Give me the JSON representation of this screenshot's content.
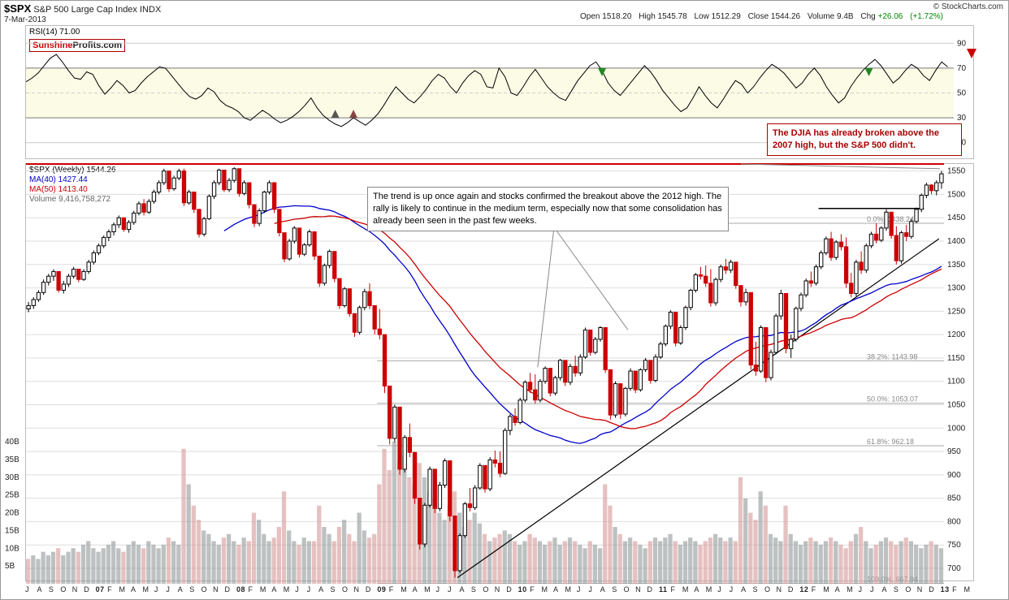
{
  "header": {
    "ticker": "$SPX",
    "name": "S&P 500 Large Cap Index",
    "type": "INDX",
    "date": "7-Mar-2013",
    "attribution": "© StockCharts.com",
    "ohlc": {
      "open": "1518.20",
      "high": "1545.78",
      "low": "1512.29",
      "close": "1544.26",
      "volume": "9.4B",
      "chg": "+26.06",
      "chg_pct": "(+1.72%)"
    }
  },
  "badge": {
    "part1": "Sunshine",
    "part2": "Profits.com"
  },
  "rsi": {
    "label": "RSI(14) 71.00",
    "yaxis": [
      10,
      30,
      50,
      70,
      90
    ],
    "overbought": 70,
    "oversold": 30,
    "mid": 50,
    "values": [
      59,
      62,
      66,
      72,
      78,
      81,
      75,
      68,
      62,
      61,
      67,
      65,
      56,
      49,
      54,
      60,
      56,
      50,
      52,
      58,
      63,
      67,
      71,
      70,
      64,
      58,
      52,
      47,
      45,
      48,
      54,
      51,
      44,
      40,
      38,
      35,
      30,
      28,
      32,
      36,
      33,
      29,
      26,
      28,
      31,
      35,
      40,
      46,
      38,
      32,
      28,
      25,
      23,
      26,
      30,
      27,
      24,
      28,
      33,
      40,
      48,
      55,
      50,
      45,
      42,
      47,
      53,
      60,
      65,
      62,
      55,
      50,
      58,
      64,
      68,
      65,
      55,
      54,
      70,
      63,
      50,
      48,
      55,
      63,
      69,
      62,
      55,
      50,
      46,
      44,
      52,
      60,
      66,
      72,
      75,
      68,
      58,
      52,
      48,
      54,
      60,
      66,
      72,
      67,
      60,
      52,
      46,
      40,
      35,
      38,
      46,
      55,
      48,
      42,
      38,
      45,
      53,
      60,
      57,
      50,
      55,
      62,
      68,
      73,
      70,
      66,
      60,
      54,
      58,
      65,
      70,
      64,
      55,
      48,
      42,
      46,
      55,
      62,
      68,
      73,
      77,
      72,
      65,
      58,
      62,
      68,
      73,
      70,
      64,
      60,
      68,
      75,
      71
    ],
    "colors": {
      "line": "#000000",
      "bands": "#888888",
      "bandfill": "#f7f7c8"
    },
    "arrow_down": true
  },
  "legend": {
    "l1": {
      "text": "$SPX (Weekly) 1544.26",
      "color": "#000000"
    },
    "l2": {
      "text": "MA(40) 1427.44",
      "color": "#0000cc"
    },
    "l3": {
      "text": "MA(50) 1413.40",
      "color": "#cc0000"
    },
    "l4": {
      "text": "Volume 9,416,758,272",
      "color": "#666666"
    }
  },
  "price": {
    "ylim": [
      667,
      1565
    ],
    "yticks": [
      700,
      750,
      800,
      850,
      900,
      950,
      1000,
      1050,
      1100,
      1150,
      1200,
      1250,
      1300,
      1350,
      1400,
      1450,
      1500,
      1550
    ],
    "resistance": 1565,
    "candles_ohlc": [
      [
        1255,
        1270,
        1248,
        1262
      ],
      [
        1262,
        1280,
        1255,
        1275
      ],
      [
        1275,
        1295,
        1270,
        1290
      ],
      [
        1290,
        1318,
        1285,
        1312
      ],
      [
        1312,
        1330,
        1305,
        1325
      ],
      [
        1325,
        1340,
        1315,
        1335
      ],
      [
        1335,
        1300,
        1290,
        1295
      ],
      [
        1295,
        1315,
        1288,
        1308
      ],
      [
        1308,
        1330,
        1302,
        1325
      ],
      [
        1325,
        1345,
        1320,
        1340
      ],
      [
        1340,
        1322,
        1312,
        1318
      ],
      [
        1318,
        1340,
        1315,
        1335
      ],
      [
        1335,
        1360,
        1330,
        1355
      ],
      [
        1355,
        1380,
        1350,
        1375
      ],
      [
        1375,
        1395,
        1370,
        1390
      ],
      [
        1390,
        1412,
        1385,
        1408
      ],
      [
        1408,
        1425,
        1400,
        1420
      ],
      [
        1420,
        1440,
        1412,
        1435
      ],
      [
        1435,
        1455,
        1428,
        1450
      ],
      [
        1450,
        1430,
        1420,
        1425
      ],
      [
        1425,
        1445,
        1418,
        1440
      ],
      [
        1440,
        1465,
        1435,
        1460
      ],
      [
        1460,
        1485,
        1455,
        1480
      ],
      [
        1480,
        1490,
        1455,
        1462
      ],
      [
        1462,
        1490,
        1458,
        1485
      ],
      [
        1485,
        1510,
        1480,
        1505
      ],
      [
        1505,
        1530,
        1500,
        1525
      ],
      [
        1525,
        1555,
        1520,
        1550
      ],
      [
        1550,
        1520,
        1505,
        1512
      ],
      [
        1512,
        1540,
        1508,
        1535
      ],
      [
        1535,
        1555,
        1530,
        1550
      ],
      [
        1550,
        1555,
        1475,
        1482
      ],
      [
        1482,
        1510,
        1478,
        1505
      ],
      [
        1505,
        1480,
        1460,
        1468
      ],
      [
        1468,
        1428,
        1408,
        1415
      ],
      [
        1415,
        1452,
        1410,
        1448
      ],
      [
        1448,
        1500,
        1445,
        1496
      ],
      [
        1496,
        1530,
        1490,
        1525
      ],
      [
        1525,
        1555,
        1520,
        1552
      ],
      [
        1552,
        1530,
        1505,
        1510
      ],
      [
        1510,
        1535,
        1505,
        1530
      ],
      [
        1530,
        1558,
        1525,
        1555
      ],
      [
        1555,
        1518,
        1495,
        1502
      ],
      [
        1502,
        1530,
        1498,
        1525
      ],
      [
        1525,
        1496,
        1470,
        1478
      ],
      [
        1478,
        1452,
        1430,
        1438
      ],
      [
        1438,
        1470,
        1432,
        1465
      ],
      [
        1465,
        1508,
        1460,
        1505
      ],
      [
        1505,
        1530,
        1500,
        1525
      ],
      [
        1525,
        1495,
        1460,
        1468
      ],
      [
        1468,
        1440,
        1410,
        1418
      ],
      [
        1418,
        1380,
        1355,
        1362
      ],
      [
        1362,
        1405,
        1358,
        1400
      ],
      [
        1400,
        1432,
        1395,
        1428
      ],
      [
        1428,
        1400,
        1365,
        1372
      ],
      [
        1372,
        1396,
        1368,
        1392
      ],
      [
        1392,
        1425,
        1388,
        1420
      ],
      [
        1420,
        1395,
        1360,
        1368
      ],
      [
        1368,
        1330,
        1302,
        1310
      ],
      [
        1310,
        1352,
        1305,
        1348
      ],
      [
        1348,
        1382,
        1342,
        1378
      ],
      [
        1378,
        1350,
        1312,
        1320
      ],
      [
        1320,
        1275,
        1255,
        1262
      ],
      [
        1262,
        1302,
        1258,
        1298
      ],
      [
        1298,
        1265,
        1238,
        1245
      ],
      [
        1245,
        1215,
        1195,
        1205
      ],
      [
        1205,
        1262,
        1200,
        1258
      ],
      [
        1258,
        1298,
        1252,
        1292
      ],
      [
        1292,
        1310,
        1255,
        1262
      ],
      [
        1262,
        1218,
        1200,
        1212
      ],
      [
        1212,
        1255,
        1190,
        1200
      ],
      [
        1200,
        1108,
        1075,
        1090
      ],
      [
        1090,
        1022,
        965,
        978
      ],
      [
        978,
        1050,
        970,
        1045
      ],
      [
        1045,
        970,
        900,
        912
      ],
      [
        912,
        985,
        905,
        980
      ],
      [
        980,
        1010,
        938,
        948
      ],
      [
        948,
        880,
        838,
        850
      ],
      [
        850,
        822,
        740,
        752
      ],
      [
        752,
        840,
        745,
        835
      ],
      [
        835,
        918,
        830,
        912
      ],
      [
        912,
        875,
        818,
        828
      ],
      [
        828,
        885,
        822,
        878
      ],
      [
        878,
        935,
        872,
        930
      ],
      [
        930,
        872,
        800,
        812
      ],
      [
        812,
        745,
        680,
        695
      ],
      [
        695,
        775,
        690,
        770
      ],
      [
        770,
        842,
        765,
        838
      ],
      [
        838,
        872,
        822,
        830
      ],
      [
        830,
        878,
        825,
        872
      ],
      [
        872,
        925,
        868,
        920
      ],
      [
        920,
        890,
        862,
        870
      ],
      [
        870,
        938,
        865,
        932
      ],
      [
        932,
        952,
        916,
        925
      ],
      [
        925,
        950,
        895,
        903
      ],
      [
        903,
        1000,
        900,
        995
      ],
      [
        995,
        1030,
        985,
        1025
      ],
      [
        1025,
        1042,
        1005,
        1012
      ],
      [
        1012,
        1065,
        1008,
        1060
      ],
      [
        1060,
        1102,
        1055,
        1098
      ],
      [
        1098,
        1118,
        1075,
        1082
      ],
      [
        1082,
        1115,
        1052,
        1060
      ],
      [
        1060,
        1105,
        1055,
        1100
      ],
      [
        1100,
        1132,
        1095,
        1128
      ],
      [
        1128,
        1095,
        1068,
        1075
      ],
      [
        1075,
        1112,
        1070,
        1108
      ],
      [
        1108,
        1148,
        1102,
        1145
      ],
      [
        1145,
        1105,
        1090,
        1098
      ],
      [
        1098,
        1138,
        1092,
        1132
      ],
      [
        1132,
        1155,
        1110,
        1118
      ],
      [
        1118,
        1158,
        1112,
        1152
      ],
      [
        1152,
        1215,
        1148,
        1210
      ],
      [
        1210,
        1172,
        1155,
        1162
      ],
      [
        1162,
        1195,
        1158,
        1190
      ],
      [
        1190,
        1218,
        1185,
        1215
      ],
      [
        1215,
        1135,
        1118,
        1125
      ],
      [
        1125,
        1075,
        1018,
        1028
      ],
      [
        1028,
        1100,
        1022,
        1095
      ],
      [
        1095,
        1072,
        1020,
        1030
      ],
      [
        1030,
        1088,
        1025,
        1085
      ],
      [
        1085,
        1128,
        1080,
        1122
      ],
      [
        1122,
        1095,
        1075,
        1082
      ],
      [
        1082,
        1128,
        1078,
        1125
      ],
      [
        1125,
        1150,
        1120,
        1145
      ],
      [
        1145,
        1112,
        1095,
        1102
      ],
      [
        1102,
        1158,
        1098,
        1152
      ],
      [
        1152,
        1185,
        1148,
        1180
      ],
      [
        1180,
        1222,
        1175,
        1218
      ],
      [
        1218,
        1252,
        1212,
        1248
      ],
      [
        1248,
        1228,
        1175,
        1182
      ],
      [
        1182,
        1220,
        1178,
        1215
      ],
      [
        1215,
        1262,
        1210,
        1258
      ],
      [
        1258,
        1298,
        1252,
        1295
      ],
      [
        1295,
        1332,
        1290,
        1328
      ],
      [
        1328,
        1345,
        1318,
        1325
      ],
      [
        1325,
        1348,
        1302,
        1310
      ],
      [
        1310,
        1340,
        1260,
        1268
      ],
      [
        1268,
        1322,
        1262,
        1318
      ],
      [
        1318,
        1350,
        1312,
        1345
      ],
      [
        1345,
        1362,
        1330,
        1338
      ],
      [
        1338,
        1360,
        1332,
        1355
      ],
      [
        1355,
        1315,
        1298,
        1305
      ],
      [
        1305,
        1272,
        1260,
        1270
      ],
      [
        1270,
        1298,
        1262,
        1290
      ],
      [
        1290,
        1222,
        1125,
        1135
      ],
      [
        1135,
        1185,
        1112,
        1122
      ],
      [
        1122,
        1220,
        1118,
        1215
      ],
      [
        1215,
        1158,
        1098,
        1108
      ],
      [
        1108,
        1168,
        1102,
        1162
      ],
      [
        1162,
        1245,
        1158,
        1240
      ],
      [
        1240,
        1296,
        1232,
        1288
      ],
      [
        1288,
        1250,
        1160,
        1170
      ],
      [
        1170,
        1200,
        1150,
        1190
      ],
      [
        1190,
        1260,
        1185,
        1256
      ],
      [
        1256,
        1290,
        1250,
        1285
      ],
      [
        1285,
        1320,
        1280,
        1315
      ],
      [
        1315,
        1335,
        1302,
        1310
      ],
      [
        1310,
        1350,
        1305,
        1345
      ],
      [
        1345,
        1380,
        1340,
        1375
      ],
      [
        1375,
        1410,
        1370,
        1405
      ],
      [
        1405,
        1420,
        1358,
        1365
      ],
      [
        1365,
        1402,
        1360,
        1398
      ],
      [
        1398,
        1415,
        1380,
        1388
      ],
      [
        1388,
        1408,
        1300,
        1310
      ],
      [
        1310,
        1332,
        1280,
        1288
      ],
      [
        1288,
        1360,
        1282,
        1355
      ],
      [
        1355,
        1378,
        1330,
        1338
      ],
      [
        1338,
        1395,
        1332,
        1390
      ],
      [
        1390,
        1420,
        1385,
        1415
      ],
      [
        1415,
        1438,
        1395,
        1402
      ],
      [
        1402,
        1432,
        1398,
        1428
      ],
      [
        1428,
        1468,
        1422,
        1462
      ],
      [
        1462,
        1438,
        1405,
        1412
      ],
      [
        1412,
        1432,
        1350,
        1358
      ],
      [
        1358,
        1422,
        1352,
        1418
      ],
      [
        1418,
        1435,
        1400,
        1410
      ],
      [
        1410,
        1448,
        1405,
        1442
      ],
      [
        1442,
        1472,
        1438,
        1468
      ],
      [
        1468,
        1502,
        1462,
        1498
      ],
      [
        1498,
        1525,
        1492,
        1520
      ],
      [
        1520,
        1522,
        1500,
        1508
      ],
      [
        1508,
        1530,
        1498,
        1525
      ],
      [
        1525,
        1550,
        1512,
        1544
      ]
    ],
    "ma40_color": "#0000cc",
    "ma50_color": "#cc0000",
    "candle_up": "#000000",
    "candle_dn": "#cc0000",
    "grid_color": "#dddddd",
    "fib": [
      {
        "level": "0.0%",
        "value": 1438.24
      },
      {
        "level": "38.2%",
        "value": 1143.98
      },
      {
        "level": "50.0%",
        "value": 1053.07
      },
      {
        "level": "61.8%",
        "value": 962.18
      },
      {
        "level": "100.0%",
        "value": 667.94
      }
    ]
  },
  "volume": {
    "yticks": [
      "5B",
      "10B",
      "15B",
      "20B",
      "25B",
      "30B",
      "35B",
      "40B"
    ],
    "max": 40,
    "values": [
      7,
      8,
      7,
      9,
      8,
      9,
      10,
      8,
      9,
      10,
      9,
      11,
      12,
      10,
      9,
      10,
      11,
      12,
      10,
      9,
      11,
      12,
      11,
      10,
      12,
      11,
      10,
      11,
      13,
      12,
      11,
      38,
      28,
      22,
      18,
      15,
      14,
      12,
      11,
      13,
      14,
      12,
      11,
      13,
      12,
      20,
      18,
      14,
      12,
      13,
      16,
      26,
      15,
      12,
      11,
      13,
      12,
      12,
      22,
      16,
      14,
      12,
      16,
      18,
      14,
      12,
      20,
      15,
      13,
      14,
      28,
      38,
      32,
      40,
      35,
      36,
      30,
      28,
      34,
      30,
      26,
      24,
      20,
      18,
      22,
      26,
      20,
      16,
      18,
      20,
      17,
      14,
      12,
      13,
      14,
      15,
      14,
      12,
      11,
      12,
      14,
      13,
      12,
      11,
      12,
      13,
      11,
      12,
      13,
      12,
      11,
      10,
      12,
      11,
      10,
      28,
      22,
      16,
      14,
      12,
      13,
      12,
      11,
      10,
      12,
      13,
      12,
      13,
      14,
      12,
      11,
      12,
      13,
      12,
      11,
      12,
      13,
      14,
      13,
      12,
      13,
      12,
      30,
      24,
      20,
      18,
      26,
      22,
      14,
      13,
      12,
      22,
      14,
      12,
      11,
      12,
      13,
      12,
      11,
      12,
      13,
      12,
      11,
      10,
      12,
      14,
      16,
      12,
      10,
      11,
      12,
      13,
      12,
      11,
      12,
      13,
      12,
      11,
      10,
      11,
      12,
      11,
      10
    ]
  },
  "annotations": {
    "a1": "The DJIA has already broken above the 2007 high, but the S&P 500 didn't.",
    "a2": "The trend is up once again and stocks confirmed the breakout above the 2012 high. The rally is likely to continue in the medium term, especially now that some consolidation has already been seen in the past few weeks."
  },
  "xaxis": {
    "labels": [
      "J",
      "A",
      "S",
      "O",
      "N",
      "D",
      "07",
      "F",
      "M",
      "A",
      "M",
      "J",
      "J",
      "A",
      "S",
      "O",
      "N",
      "D",
      "08",
      "F",
      "M",
      "A",
      "M",
      "J",
      "J",
      "A",
      "S",
      "O",
      "N",
      "D",
      "09",
      "F",
      "M",
      "A",
      "M",
      "J",
      "J",
      "A",
      "S",
      "O",
      "N",
      "D",
      "10",
      "F",
      "M",
      "A",
      "M",
      "J",
      "J",
      "A",
      "S",
      "O",
      "N",
      "D",
      "11",
      "F",
      "M",
      "A",
      "M",
      "J",
      "J",
      "A",
      "S",
      "O",
      "N",
      "D",
      "12",
      "F",
      "M",
      "A",
      "M",
      "J",
      "J",
      "A",
      "S",
      "O",
      "N",
      "D",
      "13",
      "F",
      "M"
    ]
  }
}
